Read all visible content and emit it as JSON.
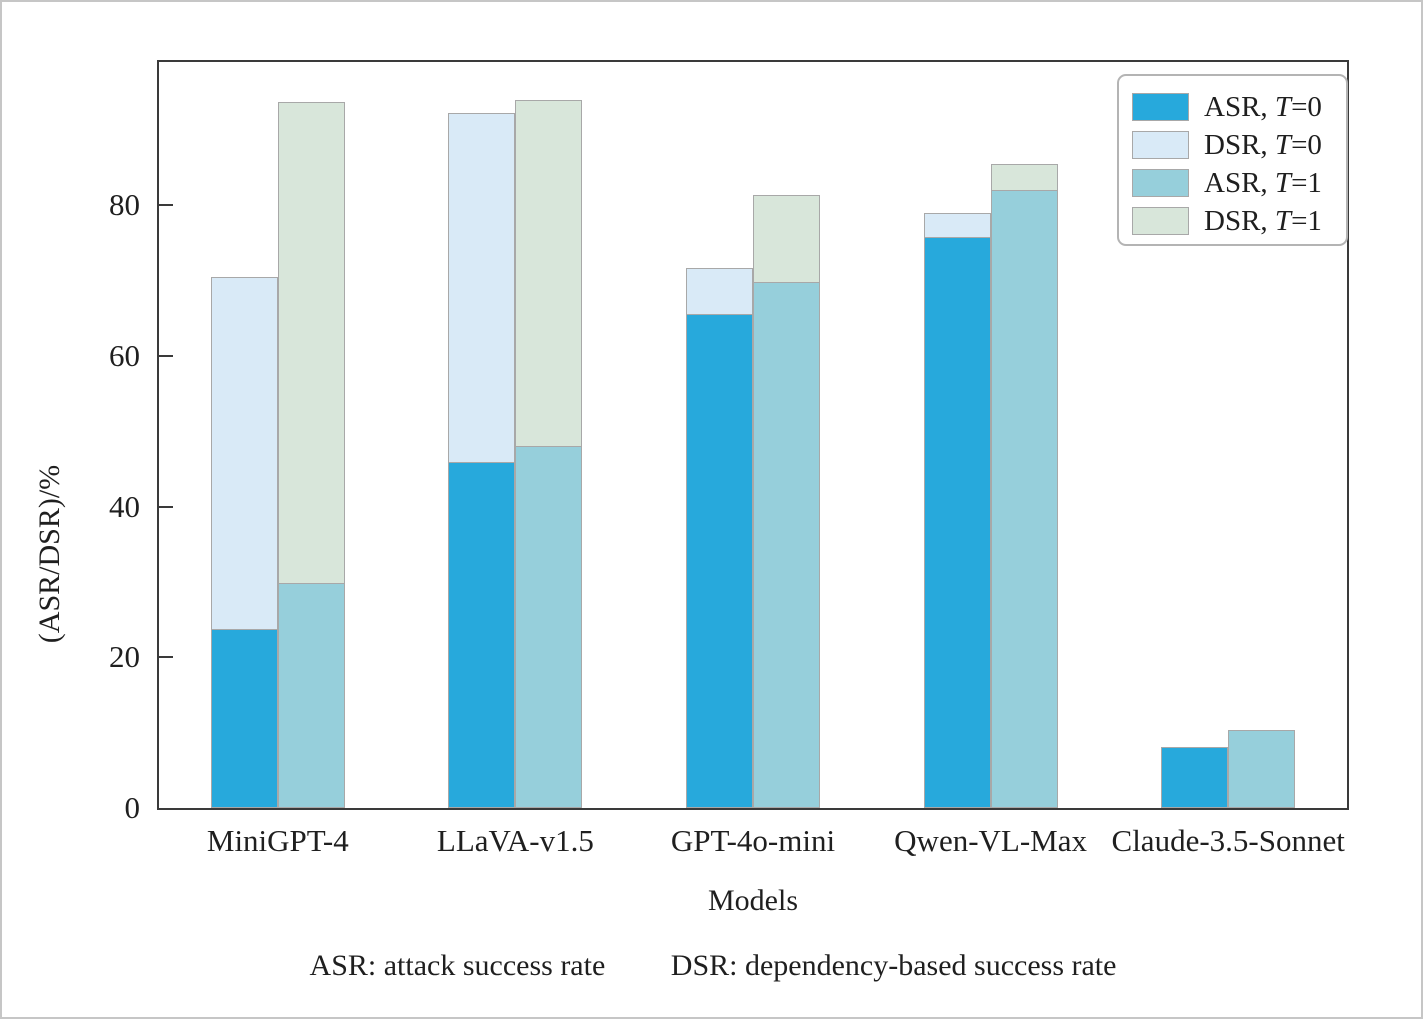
{
  "figure": {
    "background": "#ffffff",
    "outer_border_color": "#c6c6c6",
    "spine_color": "#3a3a3a",
    "text_color": "#1f1f1f"
  },
  "chart_data": {
    "type": "bar",
    "title": "",
    "xlabel": "Models",
    "ylabel": "(ASR/DSR)/%",
    "ylim": [
      0,
      99
    ],
    "yticks": [
      0,
      20,
      40,
      60,
      80
    ],
    "grid": false,
    "legend_position": "upper-right",
    "bar_edge_color": "#a8a8a8",
    "categories": [
      "MiniGPT-4",
      "LLaVA-v1.5",
      "GPT-4o-mini",
      "Qwen-VL-Max",
      "Claude-3.5-Sonnet"
    ],
    "series": [
      {
        "name": "ASR, T=0",
        "color": "#27a9dc",
        "values": [
          23.8,
          45.9,
          65.6,
          75.8,
          8.1
        ]
      },
      {
        "name": "DSR, T=0",
        "color": "#d9eaf7",
        "values": [
          70.5,
          92.3,
          71.7,
          79.0,
          null
        ]
      },
      {
        "name": "ASR, T=1",
        "color": "#96cfdb",
        "values": [
          29.8,
          48.0,
          69.8,
          82.0,
          10.4
        ]
      },
      {
        "name": "DSR, T=1",
        "color": "#d8e6da",
        "values": [
          93.7,
          94.0,
          81.4,
          85.5,
          null
        ]
      }
    ],
    "footnote_parts": [
      "ASR: attack success rate",
      "DSR: dependency-based success rate"
    ]
  }
}
